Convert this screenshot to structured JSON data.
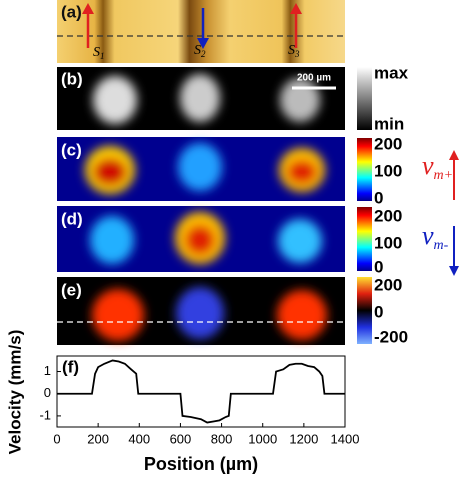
{
  "panels": {
    "a": {
      "label": "(a)",
      "markers": [
        {
          "main": "S",
          "sub": "1"
        },
        {
          "main": "S",
          "sub": "2"
        },
        {
          "main": "S",
          "sub": "3"
        }
      ]
    },
    "b": {
      "label": "(b)",
      "scale_bar": "200 µm",
      "colorbar": [
        "max",
        "min"
      ]
    },
    "c": {
      "label": "(c)",
      "colorbar": [
        "200",
        "100",
        "0"
      ],
      "side": {
        "main": "v",
        "sub": "m+"
      }
    },
    "d": {
      "label": "(d)",
      "colorbar": [
        "200",
        "100",
        "0"
      ],
      "side": {
        "main": "v",
        "sub": "m-"
      }
    },
    "e": {
      "label": "(e)",
      "colorbar": [
        "200",
        "0",
        "-200"
      ]
    }
  },
  "chart_data": {
    "type": "line",
    "label": "(f)",
    "xlabel": "Position (µm)",
    "ylabel": "Velocity (mm/s)",
    "x": [
      0,
      170,
      185,
      200,
      230,
      270,
      300,
      330,
      360,
      385,
      395,
      600,
      610,
      650,
      700,
      730,
      760,
      790,
      820,
      835,
      845,
      1050,
      1065,
      1100,
      1130,
      1160,
      1190,
      1220,
      1250,
      1275,
      1290,
      1300,
      1400
    ],
    "series": [
      {
        "color": "#000000",
        "values": [
          0,
          0,
          0.9,
          1.2,
          1.35,
          1.5,
          1.45,
          1.35,
          1.1,
          0.9,
          0,
          0,
          -1.0,
          -1.05,
          -1.15,
          -1.3,
          -1.25,
          -1.2,
          -1.05,
          -1.0,
          0,
          0,
          1.0,
          1.1,
          1.3,
          1.35,
          1.35,
          1.25,
          1.2,
          1.0,
          0.8,
          0,
          0
        ]
      }
    ],
    "xlim": [
      0,
      1400
    ],
    "xticks": [
      0,
      200,
      400,
      600,
      800,
      1000,
      1200,
      1400
    ],
    "ylim": [
      -1.5,
      1.7
    ],
    "yticks": [
      -1,
      0,
      1
    ]
  }
}
